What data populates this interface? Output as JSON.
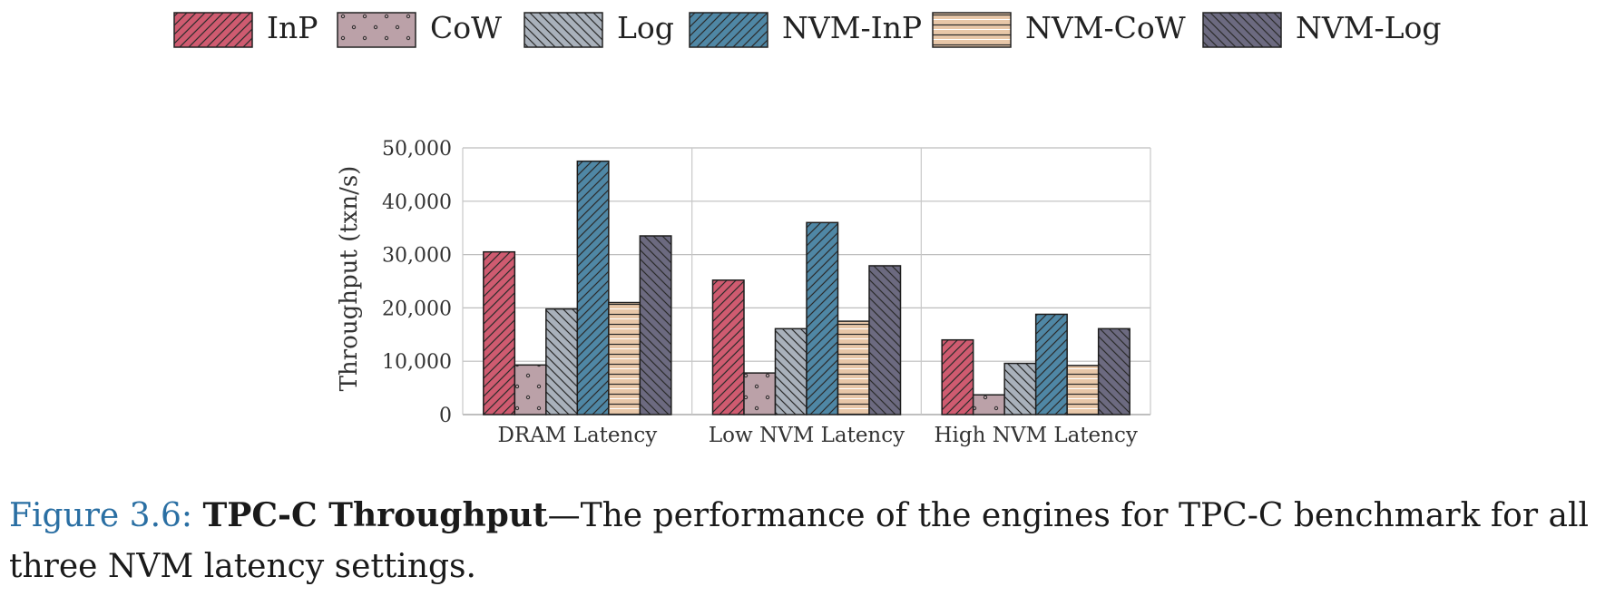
{
  "colors": {
    "InP": "#cf5b70",
    "CoW": "#bba1a8",
    "Log": "#a9b1bb",
    "NVM-InP": "#4f87a5",
    "NVM-CoW": "#e8c7a8",
    "NVM-Log": "#6c6a80"
  },
  "patterns": {
    "InP": "diag-right",
    "CoW": "dots",
    "Log": "diag-left",
    "NVM-InP": "diag-right",
    "NVM-CoW": "horizontal",
    "NVM-Log": "diag-left"
  },
  "chart_data": {
    "type": "bar",
    "title": "",
    "xlabel": "",
    "ylabel": "Throughput (txn/s)",
    "ylim": [
      0,
      50000
    ],
    "yticks": [
      "0",
      "10,000",
      "20,000",
      "30,000",
      "40,000",
      "50,000"
    ],
    "grid": true,
    "legend_position": "top",
    "categories": [
      "DRAM Latency",
      "Low NVM Latency",
      "High NVM Latency"
    ],
    "series": [
      {
        "name": "InP",
        "values": [
          30500,
          25200,
          14000
        ]
      },
      {
        "name": "CoW",
        "values": [
          9300,
          7800,
          3700
        ]
      },
      {
        "name": "Log",
        "values": [
          19800,
          16100,
          9600
        ]
      },
      {
        "name": "NVM-InP",
        "values": [
          47500,
          36000,
          18800
        ]
      },
      {
        "name": "NVM-CoW",
        "values": [
          21000,
          17500,
          9200
        ]
      },
      {
        "name": "NVM-Log",
        "values": [
          33500,
          27900,
          16100
        ]
      }
    ]
  },
  "caption": {
    "label": "Figure 3.6:",
    "title": "TPC-C Throughput",
    "text": "—The performance of the engines for TPC-C benchmark for all three NVM latency settings."
  }
}
